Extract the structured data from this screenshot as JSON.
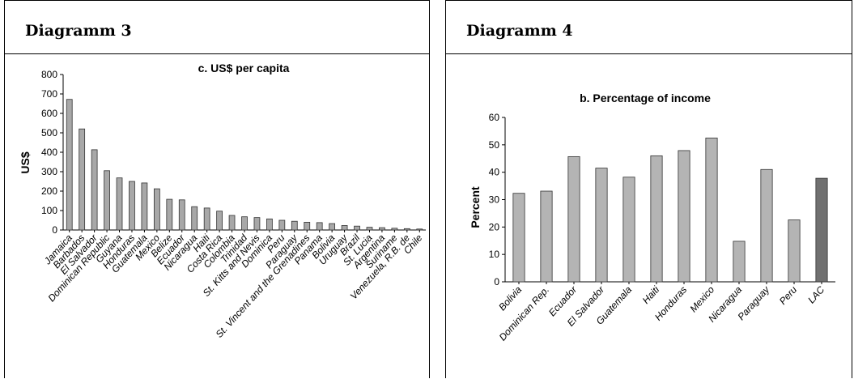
{
  "panels": [
    {
      "heading": "Diagramm 3",
      "chart": {
        "type": "bar",
        "title": "c. US$ per capita",
        "ylabel": "US$",
        "xlabel": "",
        "ylim": [
          0,
          800
        ],
        "yticks": [
          0,
          100,
          200,
          300,
          400,
          500,
          600,
          700,
          800
        ],
        "grid": false,
        "bar_color": "#a8a8a8",
        "categories": [
          "Jamaica",
          "Barbados",
          "El Salvador",
          "Dominican Republic",
          "Guyana",
          "Honduras",
          "Guatemala",
          "Mexico",
          "Belize",
          "Ecuador",
          "Nicaragua",
          "Haiti",
          "Costa Rica",
          "Colombia",
          "Trinidad",
          "St. Kitts and Nevis",
          "Dominica",
          "Peru",
          "Paraguay",
          "St. Vincent and the Grenadines",
          "Panama",
          "Bolivia",
          "Uruguay",
          "Brazil",
          "St. Lucia",
          "Argentina",
          "Suriname",
          "Venezuela, R.B. de",
          "Chile"
        ],
        "values": [
          672,
          520,
          413,
          305,
          268,
          250,
          242,
          212,
          158,
          155,
          120,
          113,
          97,
          75,
          68,
          64,
          57,
          50,
          45,
          40,
          38,
          33,
          23,
          20,
          14,
          12,
          9,
          7,
          5
        ]
      }
    },
    {
      "heading": "Diagramm 4",
      "chart": {
        "type": "bar",
        "title": "b. Percentage of income",
        "ylabel": "Percent",
        "xlabel": "",
        "ylim": [
          0,
          60
        ],
        "yticks": [
          0,
          10,
          20,
          30,
          40,
          50,
          60
        ],
        "grid": false,
        "bar_color": "#b4b4b4",
        "highlight_color": "#707070",
        "highlight_category": "LAC",
        "categories": [
          "Bolivia",
          "Dominican Rep.",
          "Ecuador",
          "El Salvador",
          "Guatemala",
          "Haiti",
          "Honduras",
          "Mexico",
          "Nicaragua",
          "Paraguay",
          "Peru",
          "LAC"
        ],
        "values": [
          32.3,
          33.1,
          45.7,
          41.5,
          38.2,
          46.0,
          47.9,
          52.5,
          14.8,
          41.0,
          22.6,
          37.8
        ]
      }
    }
  ]
}
